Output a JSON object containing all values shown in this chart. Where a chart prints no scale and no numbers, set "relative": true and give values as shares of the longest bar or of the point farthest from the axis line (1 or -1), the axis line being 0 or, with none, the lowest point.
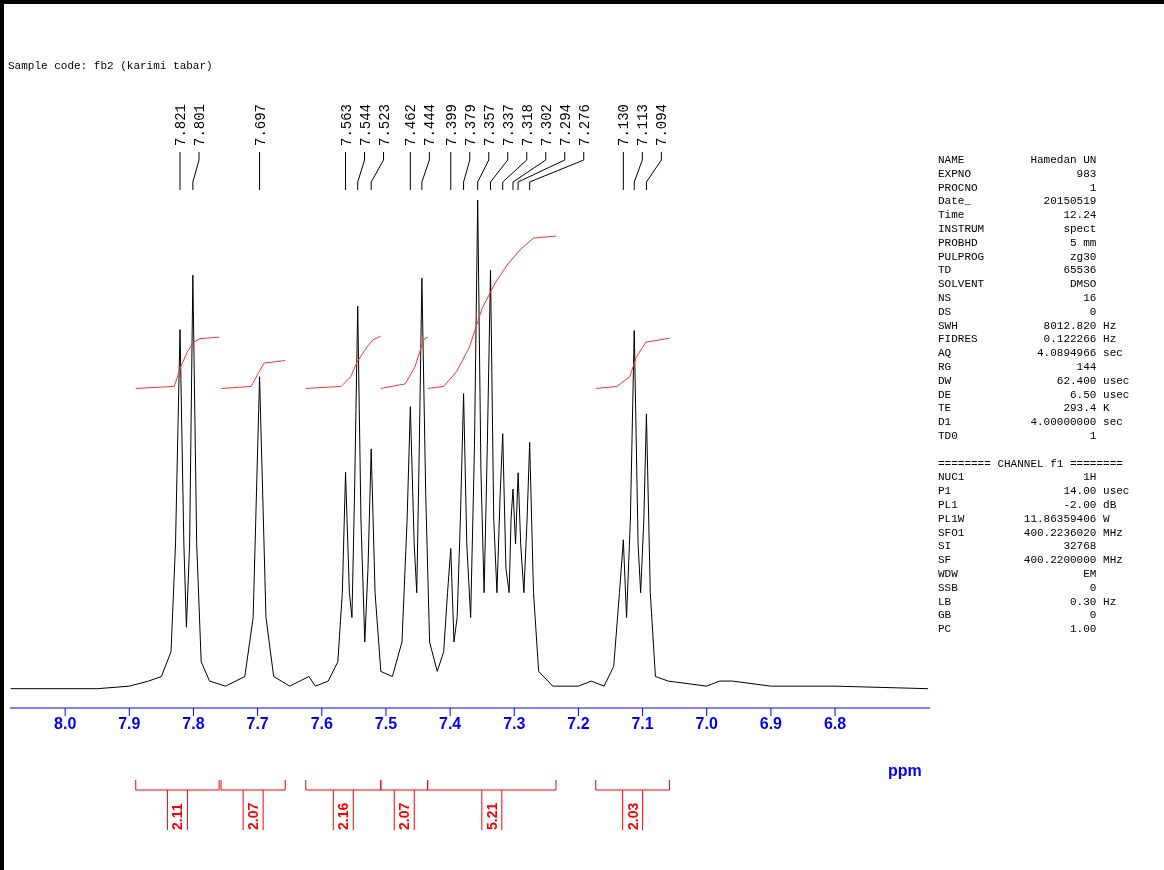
{
  "chart_data": {
    "type": "line",
    "title": "Sample code: fb2 (karimi tabar)",
    "xlabel": "ppm",
    "relative": true,
    "xlim": [
      8.086,
      6.652
    ],
    "xticks": [
      {
        "value": 8,
        "label": "8.0"
      },
      {
        "value": 7.9,
        "label": "7.9"
      },
      {
        "value": 7.8,
        "label": "7.8"
      },
      {
        "value": 7.7,
        "label": "7.7"
      },
      {
        "value": 7.6,
        "label": "7.6"
      },
      {
        "value": 7.5,
        "label": "7.5"
      },
      {
        "value": 7.4,
        "label": "7.4"
      },
      {
        "value": 7.3,
        "label": "7.3"
      },
      {
        "value": 7.2,
        "label": "7.2"
      },
      {
        "value": 7.1,
        "label": "7.1"
      },
      {
        "value": 7,
        "label": "7.0"
      },
      {
        "value": 6.9,
        "label": "6.9"
      },
      {
        "value": 6.8,
        "label": "6.8"
      }
    ],
    "marker": "none",
    "line_style": "solid",
    "series": [
      {
        "color": "#000000",
        "x": [
          8.085,
          7.95,
          7.9,
          7.87,
          7.85,
          7.835,
          7.828,
          7.821,
          7.815,
          7.811,
          7.806,
          7.801,
          7.795,
          7.788,
          7.775,
          7.75,
          7.72,
          7.707,
          7.697,
          7.687,
          7.675,
          7.65,
          7.62,
          7.61,
          7.59,
          7.575,
          7.568,
          7.563,
          7.557,
          7.553,
          7.549,
          7.544,
          7.539,
          7.533,
          7.528,
          7.523,
          7.517,
          7.508,
          7.49,
          7.475,
          7.467,
          7.462,
          7.456,
          7.452,
          7.448,
          7.444,
          7.438,
          7.432,
          7.42,
          7.41,
          7.404,
          7.399,
          7.394,
          7.389,
          7.384,
          7.379,
          7.374,
          7.368,
          7.362,
          7.357,
          7.352,
          7.347,
          7.342,
          7.337,
          7.332,
          7.327,
          7.322,
          7.318,
          7.313,
          7.308,
          7.305,
          7.302,
          7.298,
          7.294,
          7.29,
          7.285,
          7.28,
          7.276,
          7.27,
          7.262,
          7.24,
          7.2,
          7.18,
          7.16,
          7.145,
          7.136,
          7.13,
          7.125,
          7.119,
          7.113,
          7.107,
          7.103,
          7.098,
          7.094,
          7.088,
          7.08,
          7.06,
          7.0,
          6.98,
          6.96,
          6.9,
          6.8,
          6.655
        ],
        "values": [
          0.038,
          0.038,
          0.043,
          0.053,
          0.062,
          0.111,
          0.323,
          0.745,
          0.323,
          0.159,
          0.323,
          0.852,
          0.323,
          0.091,
          0.053,
          0.043,
          0.062,
          0.178,
          0.652,
          0.178,
          0.062,
          0.043,
          0.062,
          0.043,
          0.053,
          0.091,
          0.227,
          0.464,
          0.227,
          0.178,
          0.42,
          0.791,
          0.372,
          0.13,
          0.275,
          0.51,
          0.227,
          0.072,
          0.062,
          0.13,
          0.372,
          0.593,
          0.323,
          0.227,
          0.517,
          0.846,
          0.42,
          0.13,
          0.072,
          0.111,
          0.227,
          0.314,
          0.13,
          0.178,
          0.372,
          0.619,
          0.323,
          0.178,
          0.517,
          1,
          0.468,
          0.227,
          0.517,
          0.862,
          0.372,
          0.227,
          0.42,
          0.54,
          0.275,
          0.227,
          0.372,
          0.431,
          0.323,
          0.463,
          0.323,
          0.227,
          0.372,
          0.523,
          0.227,
          0.072,
          0.043,
          0.043,
          0.053,
          0.043,
          0.082,
          0.227,
          0.331,
          0.178,
          0.372,
          0.743,
          0.323,
          0.227,
          0.372,
          0.579,
          0.227,
          0.062,
          0.053,
          0.043,
          0.053,
          0.053,
          0.043,
          0.043,
          0.038
        ]
      },
      {
        "color": "#ff3333",
        "x": [
          7.89,
          7.83,
          7.82,
          7.81,
          7.8,
          7.79,
          7.76
        ],
        "values": [
          0.629,
          0.633,
          0.671,
          0.7,
          0.72,
          0.727,
          0.73
        ]
      },
      {
        "color": "#ff3333",
        "x": [
          7.757,
          7.71,
          7.7,
          7.69,
          7.657
        ],
        "values": [
          0.629,
          0.633,
          0.657,
          0.679,
          0.684
        ]
      },
      {
        "color": "#ff3333",
        "x": [
          7.625,
          7.57,
          7.555,
          7.545,
          7.53,
          7.52,
          7.508
        ],
        "values": [
          0.629,
          0.633,
          0.652,
          0.681,
          0.71,
          0.725,
          0.732
        ]
      },
      {
        "color": "#ff3333",
        "x": [
          7.508,
          7.47,
          7.455,
          7.445,
          7.44,
          7.435
        ],
        "values": [
          0.629,
          0.638,
          0.671,
          0.71,
          0.727,
          0.73
        ]
      },
      {
        "color": "#ff3333",
        "x": [
          7.435,
          7.41,
          7.39,
          7.37,
          7.35,
          7.33,
          7.31,
          7.29,
          7.27,
          7.235
        ],
        "values": [
          0.629,
          0.633,
          0.662,
          0.71,
          0.787,
          0.836,
          0.874,
          0.903,
          0.925,
          0.929
        ]
      },
      {
        "color": "#ff3333",
        "x": [
          7.173,
          7.14,
          7.12,
          7.11,
          7.095,
          7.058
        ],
        "values": [
          0.629,
          0.633,
          0.652,
          0.69,
          0.72,
          0.728
        ]
      }
    ],
    "annotations": [
      "7.821",
      "7.801",
      "7.697",
      "7.563",
      "7.544",
      "7.523",
      "7.462",
      "7.444",
      "7.399",
      "7.379",
      "7.357",
      "7.337",
      "7.318",
      "7.302",
      "7.294",
      "7.276",
      "7.130",
      "7.113",
      "7.094",
      "2.11",
      "2.07",
      "2.16",
      "2.07",
      "5.21",
      "2.03",
      "NAME          Hamedan UN",
      "EXPNO                983",
      "PROCNO                 1",
      "Date_           20150519",
      "Time               12.24",
      "INSTRUM            spect",
      "PROBHD              5 mm",
      "PULPROG             zg30",
      "TD                 65536",
      "SOLVENT             DMSO",
      "NS                    16",
      "DS                     0",
      "SWH             8012.820 Hz",
      "FIDRES          0.122266 Hz",
      "AQ             4.0894966 sec",
      "RG                   144",
      "DW                62.400 usec",
      "DE                  6.50 usec",
      "TE                 293.4 K",
      "D1            4.00000000 sec",
      "TD0                    1",
      "======== CHANNEL f1 ========",
      "NUC1                  1H",
      "P1                 14.00 usec",
      "PL1                -2.00 dB",
      "PL1W         11.86359406 W",
      "SFO1         400.2236020 MHz",
      "SI                 32768",
      "SF           400.2200000 MHz",
      "WDW                   EM",
      "SSB                    0",
      "LB                  0.30 Hz",
      "GB                     0",
      "PC                  1.00"
    ]
  }
}
